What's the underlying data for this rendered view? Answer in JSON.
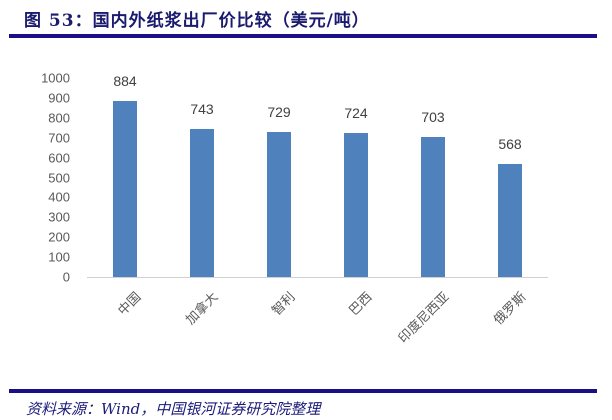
{
  "header": {
    "title": "图 53：国内外纸浆出厂价比较（美元/吨）"
  },
  "footer": {
    "source": "资料来源：Wind，中国银河证券研究院整理"
  },
  "colors": {
    "bar": "#4f81bd",
    "rule": "#1b0f85",
    "title": "#1a1a6e"
  },
  "chart_data": {
    "type": "bar",
    "title": "国内外纸浆出厂价比较（美元/吨）",
    "categories": [
      "中国",
      "加拿大",
      "智利",
      "巴西",
      "印度尼西亚",
      "俄罗斯"
    ],
    "values": [
      884,
      743,
      729,
      724,
      703,
      568
    ],
    "data_labels": [
      "884",
      "743",
      "729",
      "724",
      "703",
      "568"
    ],
    "xlabel": "",
    "ylabel": "",
    "ylim": [
      0,
      1000
    ],
    "yticks": [
      "0",
      "100",
      "200",
      "300",
      "400",
      "500",
      "600",
      "700",
      "800",
      "900",
      "1000"
    ],
    "grid": false,
    "legend": null,
    "unit": "美元/吨"
  }
}
